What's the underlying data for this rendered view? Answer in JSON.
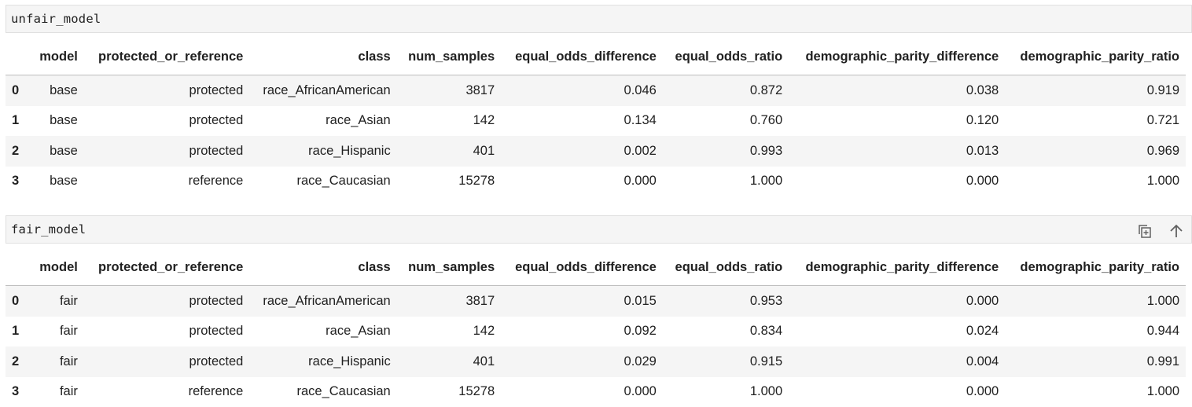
{
  "cells": [
    {
      "code": "unfair_model",
      "columns": [
        "",
        "model",
        "protected_or_reference",
        "class",
        "num_samples",
        "equal_odds_difference",
        "equal_odds_ratio",
        "demographic_parity_difference",
        "demographic_parity_ratio"
      ],
      "rows": [
        [
          "0",
          "base",
          "protected",
          "race_AfricanAmerican",
          "3817",
          "0.046",
          "0.872",
          "0.038",
          "0.919"
        ],
        [
          "1",
          "base",
          "protected",
          "race_Asian",
          "142",
          "0.134",
          "0.760",
          "0.120",
          "0.721"
        ],
        [
          "2",
          "base",
          "protected",
          "race_Hispanic",
          "401",
          "0.002",
          "0.993",
          "0.013",
          "0.969"
        ],
        [
          "3",
          "base",
          "reference",
          "race_Caucasian",
          "15278",
          "0.000",
          "1.000",
          "0.000",
          "1.000"
        ]
      ]
    },
    {
      "code": "fair_model",
      "icons": [
        "copy-icon",
        "arrow-up-icon"
      ],
      "columns": [
        "",
        "model",
        "protected_or_reference",
        "class",
        "num_samples",
        "equal_odds_difference",
        "equal_odds_ratio",
        "demographic_parity_difference",
        "demographic_parity_ratio"
      ],
      "rows": [
        [
          "0",
          "fair",
          "protected",
          "race_AfricanAmerican",
          "3817",
          "0.015",
          "0.953",
          "0.000",
          "1.000"
        ],
        [
          "1",
          "fair",
          "protected",
          "race_Asian",
          "142",
          "0.092",
          "0.834",
          "0.024",
          "0.944"
        ],
        [
          "2",
          "fair",
          "protected",
          "race_Hispanic",
          "401",
          "0.029",
          "0.915",
          "0.004",
          "0.991"
        ],
        [
          "3",
          "fair",
          "reference",
          "race_Caucasian",
          "15278",
          "0.000",
          "1.000",
          "0.000",
          "1.000"
        ]
      ]
    }
  ]
}
